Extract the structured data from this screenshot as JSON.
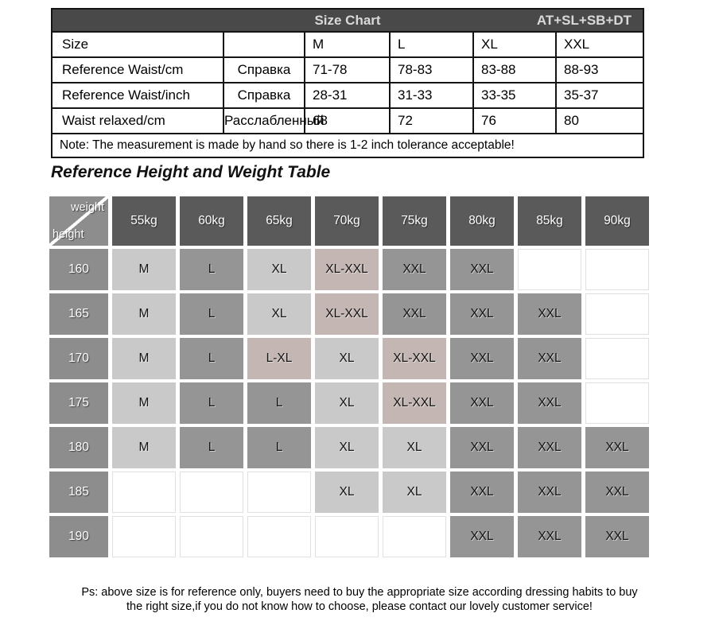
{
  "size_chart": {
    "header_title": "Size Chart",
    "header_right": "AT+SL+SB+DT",
    "rows": [
      {
        "label": "Size",
        "ru": "",
        "values": [
          "M",
          "L",
          "XL",
          "XXL"
        ]
      },
      {
        "label": "Reference Waist/cm",
        "ru": "Справка",
        "values": [
          "71-78",
          "78-83",
          "83-88",
          "88-93"
        ]
      },
      {
        "label": "Reference Waist/inch",
        "ru": "Справка",
        "values": [
          "28-31",
          "31-33",
          "33-35",
          "35-37"
        ]
      },
      {
        "label": "Waist relaxed/cm",
        "ru": "Расслабленный",
        "values": [
          "68",
          "72",
          "76",
          "80"
        ]
      }
    ],
    "note": "Note: The measurement is made by hand so there is 1-2 inch tolerance acceptable!"
  },
  "height_weight": {
    "title": "Reference Height and Weight Table",
    "corner_top": "weight",
    "corner_bottom": "height",
    "weight_headers": [
      "55kg",
      "60kg",
      "65kg",
      "70kg",
      "75kg",
      "80kg",
      "85kg",
      "90kg"
    ],
    "rows": [
      {
        "height": "160",
        "cells": [
          [
            "M",
            "light"
          ],
          [
            "L",
            "mid"
          ],
          [
            "XL",
            "light"
          ],
          [
            "XL-XXL",
            "pink"
          ],
          [
            "XXL",
            "mid"
          ],
          [
            "XXL",
            "mid"
          ],
          [
            "",
            ""
          ],
          [
            "",
            ""
          ]
        ]
      },
      {
        "height": "165",
        "cells": [
          [
            "M",
            "light"
          ],
          [
            "L",
            "mid"
          ],
          [
            "XL",
            "light"
          ],
          [
            "XL-XXL",
            "pink"
          ],
          [
            "XXL",
            "mid"
          ],
          [
            "XXL",
            "mid"
          ],
          [
            "XXL",
            "mid"
          ],
          [
            "",
            ""
          ]
        ]
      },
      {
        "height": "170",
        "cells": [
          [
            "M",
            "light"
          ],
          [
            "L",
            "mid"
          ],
          [
            "L-XL",
            "pink"
          ],
          [
            "XL",
            "light"
          ],
          [
            "XL-XXL",
            "pink"
          ],
          [
            "XXL",
            "mid"
          ],
          [
            "XXL",
            "mid"
          ],
          [
            "",
            ""
          ]
        ]
      },
      {
        "height": "175",
        "cells": [
          [
            "M",
            "light"
          ],
          [
            "L",
            "mid"
          ],
          [
            "L",
            "mid"
          ],
          [
            "XL",
            "light"
          ],
          [
            "XL-XXL",
            "pink"
          ],
          [
            "XXL",
            "mid"
          ],
          [
            "XXL",
            "mid"
          ],
          [
            "",
            ""
          ]
        ]
      },
      {
        "height": "180",
        "cells": [
          [
            "M",
            "light"
          ],
          [
            "L",
            "mid"
          ],
          [
            "L",
            "mid"
          ],
          [
            "XL",
            "light"
          ],
          [
            "XL",
            "light"
          ],
          [
            "XXL",
            "mid"
          ],
          [
            "XXL",
            "mid"
          ],
          [
            "XXL",
            "mid"
          ]
        ]
      },
      {
        "height": "185",
        "cells": [
          [
            "",
            ""
          ],
          [
            "",
            ""
          ],
          [
            "",
            ""
          ],
          [
            "XL",
            "light"
          ],
          [
            "XL",
            "light"
          ],
          [
            "XXL",
            "mid"
          ],
          [
            "XXL",
            "mid"
          ],
          [
            "XXL",
            "mid"
          ]
        ]
      },
      {
        "height": "190",
        "cells": [
          [
            "",
            ""
          ],
          [
            "",
            ""
          ],
          [
            "",
            ""
          ],
          [
            "",
            ""
          ],
          [
            "",
            ""
          ],
          [
            "XXL",
            "mid"
          ],
          [
            "XXL",
            "mid"
          ],
          [
            "XXL",
            "mid"
          ]
        ]
      }
    ]
  },
  "footer": {
    "line1": "Ps: above size is for reference only, buyers need to buy the appropriate size according dressing habits to buy",
    "line2": "the right size,if you do not know how to choose, please contact our lovely customer service!"
  },
  "colors": {
    "header_bar": "#494949",
    "kg_header": "#5a5a5a",
    "height_header": "#8d8d8d",
    "cell_light": "#c9c9c9",
    "cell_mid": "#959595",
    "cell_pink": "#c4b7b3"
  }
}
